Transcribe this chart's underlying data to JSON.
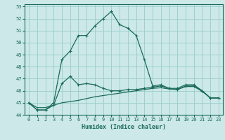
{
  "xlabel": "Humidex (Indice chaleur)",
  "background_color": "#cce8e8",
  "line_color": "#1a6b5a",
  "grid_color": "#99cccc",
  "xlim": [
    -0.5,
    23.5
  ],
  "ylim": [
    44,
    53.2
  ],
  "xticks": [
    0,
    1,
    2,
    3,
    4,
    5,
    6,
    7,
    8,
    9,
    10,
    11,
    12,
    13,
    14,
    15,
    16,
    17,
    18,
    19,
    20,
    21,
    22,
    23
  ],
  "yticks": [
    44,
    45,
    46,
    47,
    48,
    49,
    50,
    51,
    52,
    53
  ],
  "series1_x": [
    0,
    1,
    2,
    3,
    4,
    5,
    6,
    7,
    8,
    9,
    10,
    11,
    12,
    13,
    14,
    15,
    16,
    17,
    18,
    19,
    20,
    21,
    22,
    23
  ],
  "series1_y": [
    45.0,
    44.4,
    44.4,
    45.0,
    48.6,
    49.3,
    50.6,
    50.6,
    51.4,
    52.0,
    52.6,
    51.5,
    51.2,
    50.6,
    48.6,
    46.4,
    46.5,
    46.2,
    46.2,
    46.5,
    46.5,
    46.0,
    45.4,
    45.4
  ],
  "series2_x": [
    0,
    1,
    2,
    3,
    4,
    5,
    6,
    7,
    8,
    9,
    10,
    11,
    12,
    13,
    14,
    15,
    16,
    17,
    18,
    19,
    20,
    21,
    22,
    23
  ],
  "series2_y": [
    45.0,
    44.4,
    44.4,
    44.8,
    46.6,
    47.2,
    46.5,
    46.6,
    46.5,
    46.2,
    46.0,
    46.0,
    46.1,
    46.1,
    46.2,
    46.3,
    46.4,
    46.2,
    46.1,
    46.4,
    46.4,
    46.0,
    45.4,
    45.4
  ],
  "series3_x": [
    0,
    1,
    2,
    3,
    4,
    5,
    6,
    7,
    8,
    9,
    10,
    11,
    12,
    13,
    14,
    15,
    16,
    17,
    18,
    19,
    20,
    21,
    22,
    23
  ],
  "series3_y": [
    45.0,
    44.6,
    44.6,
    44.8,
    45.0,
    45.1,
    45.2,
    45.35,
    45.5,
    45.6,
    45.7,
    45.8,
    45.9,
    46.0,
    46.1,
    46.2,
    46.25,
    46.15,
    46.1,
    46.35,
    46.35,
    45.95,
    45.4,
    45.4
  ]
}
